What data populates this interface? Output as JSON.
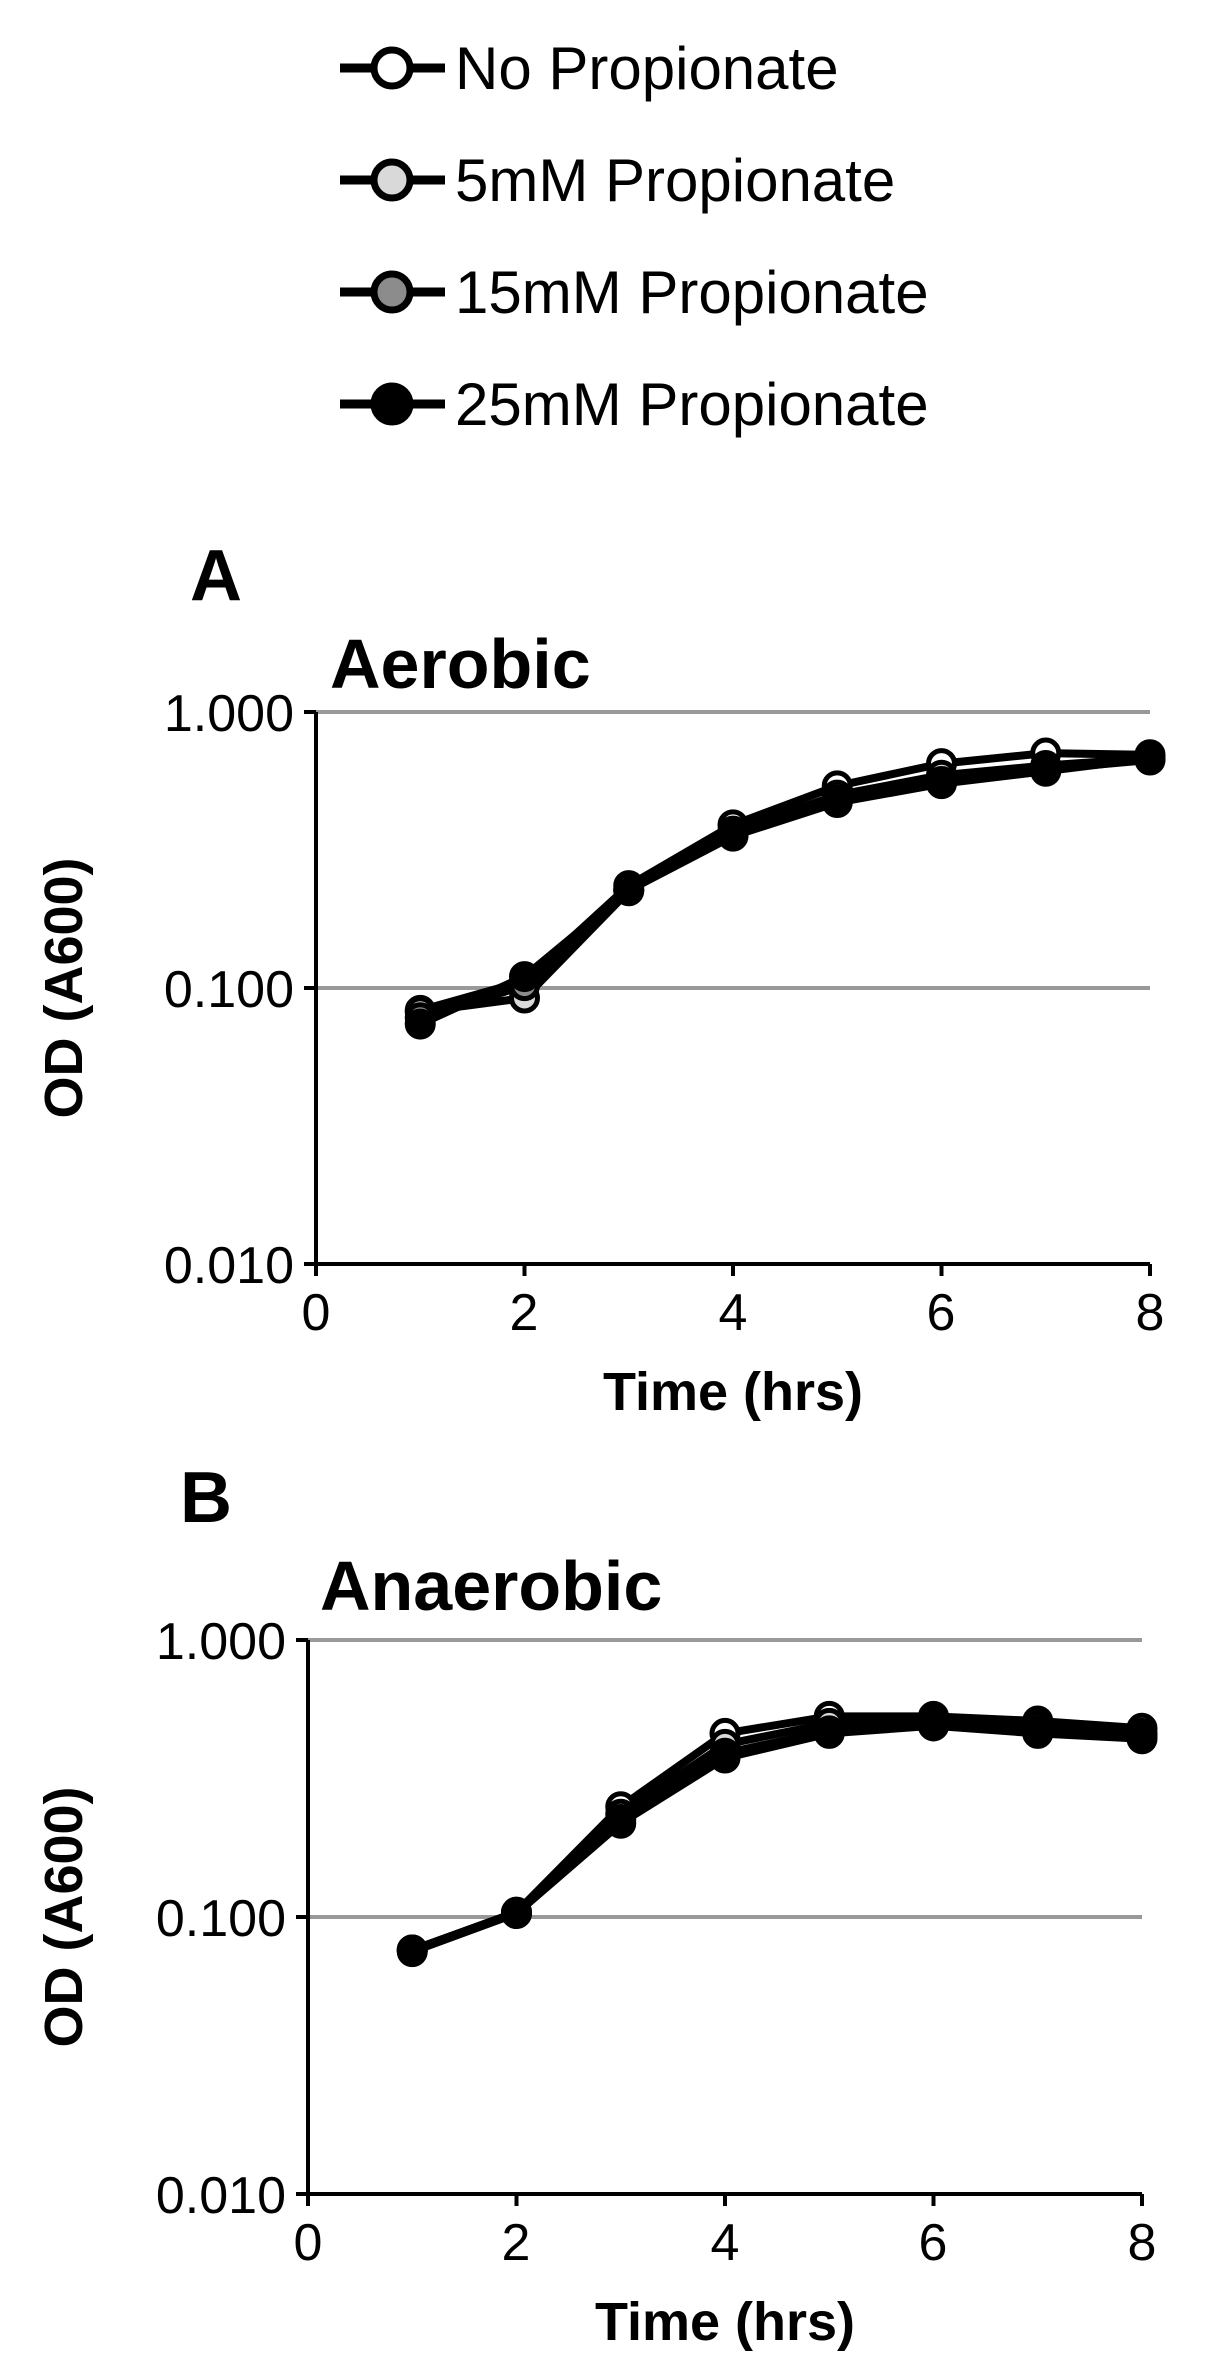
{
  "legend": {
    "entries": [
      {
        "label": "No Propionate",
        "fill": "#ffffff"
      },
      {
        "label": "5mM Propionate",
        "fill": "#d9d9d9"
      },
      {
        "label": "15mM Propionate",
        "fill": "#8c8c8c"
      },
      {
        "label": "25mM Propionate",
        "fill": "#000000"
      }
    ]
  },
  "colors": {
    "line": "#000000",
    "grid": "#999999",
    "axis": "#000000"
  },
  "chart_data": [
    {
      "type": "line",
      "panel_label": "A",
      "title": "Aerobic",
      "xlabel": "Time (hrs)",
      "ylabel": "OD (A600)",
      "yscale": "log",
      "xlim": [
        0,
        8
      ],
      "ylim": [
        0.01,
        1
      ],
      "x_ticks": [
        "0",
        "2",
        "4",
        "6",
        "8"
      ],
      "y_ticks": [
        "0.010",
        "0.100",
        "1.000"
      ],
      "gridlines_at": [
        0.1,
        1
      ],
      "x": [
        1,
        2,
        3,
        4,
        5,
        6,
        7,
        8
      ],
      "series": [
        {
          "name": "No Propionate",
          "values": [
            0.083,
            0.106,
            0.235,
            0.39,
            0.54,
            0.65,
            0.71,
            0.7
          ]
        },
        {
          "name": "5mM Propionate",
          "values": [
            0.082,
            0.092,
            0.225,
            0.37,
            0.5,
            0.59,
            0.64,
            0.68
          ]
        },
        {
          "name": "15mM Propionate",
          "values": [
            0.078,
            0.102,
            0.228,
            0.36,
            0.48,
            0.56,
            0.62,
            0.67
          ]
        },
        {
          "name": "25mM Propionate",
          "values": [
            0.074,
            0.11,
            0.226,
            0.355,
            0.47,
            0.55,
            0.61,
            0.68
          ]
        }
      ]
    },
    {
      "type": "line",
      "panel_label": "B",
      "title": "Anaerobic",
      "xlabel": "Time (hrs)",
      "ylabel": "OD (A600)",
      "yscale": "log",
      "xlim": [
        0,
        8
      ],
      "ylim": [
        0.01,
        1
      ],
      "x_ticks": [
        "0",
        "2",
        "4",
        "6",
        "8"
      ],
      "y_ticks": [
        "0.010",
        "0.100",
        "1.000"
      ],
      "gridlines_at": [
        0.1,
        1
      ],
      "x": [
        1,
        2,
        3,
        4,
        5,
        6,
        7,
        8
      ],
      "series": [
        {
          "name": "No Propionate",
          "values": [
            0.076,
            0.104,
            0.25,
            0.46,
            0.53,
            0.53,
            0.51,
            0.48
          ]
        },
        {
          "name": "5mM Propionate",
          "values": [
            0.076,
            0.104,
            0.235,
            0.42,
            0.5,
            0.51,
            0.49,
            0.46
          ]
        },
        {
          "name": "15mM Propionate",
          "values": [
            0.076,
            0.103,
            0.225,
            0.39,
            0.47,
            0.49,
            0.47,
            0.45
          ]
        },
        {
          "name": "25mM Propionate",
          "values": [
            0.075,
            0.103,
            0.218,
            0.375,
            0.46,
            0.49,
            0.46,
            0.44
          ]
        }
      ]
    }
  ]
}
